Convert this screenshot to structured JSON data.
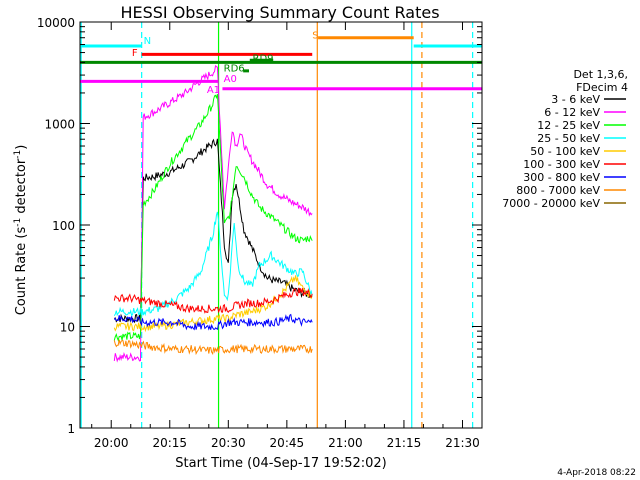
{
  "chart_data": {
    "type": "line",
    "title": "HESSI Observing Summary Count Rates",
    "xlabel": "Start Time (04-Sep-17 19:52:02)",
    "ylabel": "Count Rate (s⁻¹ detector⁻¹)",
    "ylabel_main": "Count Rate (s",
    "ylabel_sup1": "-1",
    "ylabel_mid": " detector",
    "ylabel_sup2": "-1",
    "ylabel_end": ")",
    "y_scale": "log",
    "ylim": [
      1,
      10000
    ],
    "x_start_min": 1192,
    "x_end_min": 1295,
    "x_ticks": [
      {
        "min": 1200,
        "label": "20:00"
      },
      {
        "min": 1215,
        "label": "20:15"
      },
      {
        "min": 1230,
        "label": "20:30"
      },
      {
        "min": 1245,
        "label": "20:45"
      },
      {
        "min": 1260,
        "label": "21:00"
      },
      {
        "min": 1275,
        "label": "21:15"
      },
      {
        "min": 1290,
        "label": "21:30"
      }
    ],
    "y_ticks": [
      {
        "v": 1,
        "label": "1"
      },
      {
        "v": 10,
        "label": "10"
      },
      {
        "v": 100,
        "label": "100"
      },
      {
        "v": 1000,
        "label": "1000"
      },
      {
        "v": 10000,
        "label": "10000"
      }
    ],
    "legend": {
      "header1": "Det 1,3,6,",
      "header2": "FDecim 4",
      "placement": "right"
    },
    "series": [
      {
        "name": "3 - 6 keV",
        "color": "#000000",
        "x": [
          1200.8,
          1205,
          1207.5,
          1208.2,
          1211,
          1215,
          1220,
          1224,
          1227.2,
          1229,
          1230,
          1231,
          1232,
          1234,
          1236,
          1238,
          1240,
          1242,
          1244,
          1246,
          1248,
          1250,
          1251.5
        ],
        "y": [
          12,
          12,
          12,
          290,
          300,
          330,
          420,
          560,
          680,
          65,
          40,
          200,
          260,
          90,
          60,
          40,
          30,
          28,
          27,
          24,
          22,
          21,
          20
        ]
      },
      {
        "name": "6 - 12 keV",
        "color": "#ff00ff",
        "x": [
          1200.8,
          1205,
          1207.5,
          1208.2,
          1211,
          1215,
          1219,
          1222,
          1225,
          1227.2,
          1229,
          1231,
          1232,
          1233,
          1235,
          1237,
          1240,
          1243,
          1246,
          1249,
          1251.5
        ],
        "y": [
          5,
          5,
          5,
          1150,
          1300,
          1600,
          2000,
          2500,
          3000,
          3500,
          150,
          900,
          600,
          800,
          500,
          380,
          250,
          200,
          170,
          150,
          130
        ]
      },
      {
        "name": "12 - 25 keV",
        "color": "#00ff00",
        "x": [
          1200.8,
          1205,
          1207.5,
          1208.2,
          1211,
          1215,
          1219,
          1223,
          1226,
          1227.2,
          1229,
          1230.5,
          1232,
          1234,
          1236,
          1238,
          1241,
          1244,
          1247,
          1249,
          1250.5,
          1251.5
        ],
        "y": [
          8,
          8,
          8,
          160,
          220,
          400,
          640,
          1000,
          1550,
          2000,
          100,
          130,
          400,
          300,
          200,
          150,
          120,
          95,
          75,
          70,
          75,
          70
        ]
      },
      {
        "name": "25 - 50 keV",
        "color": "#00ffff",
        "x": [
          1200.8,
          1205,
          1207.5,
          1208.2,
          1212,
          1216,
          1220,
          1223,
          1226,
          1227.2,
          1229,
          1230,
          1231.5,
          1232.5,
          1234,
          1236,
          1238,
          1241,
          1244,
          1247,
          1249,
          1251.5
        ],
        "y": [
          14,
          14,
          14,
          14,
          15,
          18,
          24,
          35,
          80,
          140,
          20,
          20,
          110,
          40,
          28,
          25,
          40,
          50,
          40,
          33,
          35,
          20
        ]
      },
      {
        "name": "50 - 100 keV",
        "color": "#ffcc00",
        "x": [
          1200.8,
          1207.5,
          1212,
          1220,
          1227.2,
          1230,
          1232,
          1236,
          1240,
          1244,
          1247,
          1249,
          1251.5
        ],
        "y": [
          10,
          10,
          10,
          11,
          12,
          12,
          13,
          14,
          16,
          22,
          30,
          24,
          20
        ]
      },
      {
        "name": "100 - 300 keV",
        "color": "#ff0000",
        "x": [
          1200.8,
          1205,
          1208,
          1212,
          1216,
          1220,
          1224,
          1227,
          1230,
          1232,
          1235,
          1238,
          1241,
          1244,
          1247,
          1249,
          1251.5
        ],
        "y": [
          19,
          19,
          18,
          17,
          16,
          15,
          15,
          15,
          15,
          16,
          17,
          17,
          18,
          20,
          22,
          22,
          21
        ]
      },
      {
        "name": "300 - 800 keV",
        "color": "#0000ff",
        "x": [
          1200.8,
          1205,
          1208,
          1212,
          1216,
          1220,
          1224,
          1227,
          1230,
          1234,
          1238,
          1242,
          1246,
          1249,
          1251.5
        ],
        "y": [
          12,
          12,
          11,
          11,
          11,
          10,
          10,
          10,
          11,
          11,
          11,
          11,
          12,
          11,
          11
        ]
      },
      {
        "name": "800 - 7000 keV",
        "color": "#ff8800",
        "x": [
          1200.8,
          1205,
          1208,
          1212,
          1216,
          1220,
          1224,
          1227,
          1230,
          1234,
          1238,
          1242,
          1246,
          1249,
          1251.5
        ],
        "y": [
          7,
          6.8,
          6.5,
          6.2,
          6,
          6,
          5.8,
          5.8,
          6,
          6,
          6,
          6,
          6,
          6,
          6
        ]
      },
      {
        "name": "7000 - 20000 keV",
        "color": "#886600",
        "x": [],
        "y": []
      }
    ],
    "segments": [
      {
        "label": "N",
        "color": "#00ffff",
        "x1": 1192,
        "x2": 1207.8,
        "y": 5800
      },
      {
        "label": "",
        "color": "#00ffff",
        "x1": 1277.5,
        "x2": 1295,
        "y": 5800
      },
      {
        "label": "F",
        "color": "#ff0000",
        "x1": 1207.8,
        "x2": 1251.5,
        "y": 4800
      },
      {
        "label": "",
        "color": "#008800",
        "x1": 1192,
        "x2": 1295,
        "y": 4000
      },
      {
        "label": "S",
        "color": "#ff8800",
        "x1": 1253,
        "x2": 1277.5,
        "y": 7000
      },
      {
        "label": "A0",
        "color": "#ff00ff",
        "x1": 1192,
        "x2": 1227.5,
        "y": 2600
      },
      {
        "label": "",
        "color": "#ff00ff",
        "x1": 1228.5,
        "x2": 1295,
        "y": 2200
      },
      {
        "label": "RD9",
        "color": "#008800",
        "x1": 1235.5,
        "x2": 1241.5,
        "y": 4200
      },
      {
        "label": "RD6",
        "color": "#008800",
        "x1": 1233.8,
        "x2": 1235.3,
        "y": 3300
      }
    ],
    "labels": [
      {
        "text": "N",
        "x": 1208.3,
        "y": 6100,
        "color": "#00ffff"
      },
      {
        "text": "F",
        "x": 1205.3,
        "y": 4600,
        "color": "#ff0000"
      },
      {
        "text": "S",
        "x": 1251.5,
        "y": 6900,
        "color": "#ff8800"
      },
      {
        "text": "A1",
        "x": 1224.5,
        "y": 2000,
        "color": "#ff00ff"
      },
      {
        "text": "A0",
        "x": 1228.8,
        "y": 2550,
        "color": "#ff00ff"
      },
      {
        "text": "RD6",
        "x": 1228.8,
        "y": 3250,
        "color": "#008800"
      },
      {
        "text": "RD9",
        "x": 1236.2,
        "y": 4100,
        "color": "#008800"
      }
    ],
    "vlines": [
      {
        "x": 1192.3,
        "color": "#00ffff",
        "dash": false
      },
      {
        "x": 1207.8,
        "color": "#00ffff",
        "dash": true
      },
      {
        "x": 1227.5,
        "color": "#00ff00",
        "dash": false
      },
      {
        "x": 1252.8,
        "color": "#ff8800",
        "dash": false
      },
      {
        "x": 1277.0,
        "color": "#00ffff",
        "dash": false
      },
      {
        "x": 1279.6,
        "color": "#ff8800",
        "dash": true
      },
      {
        "x": 1292.6,
        "color": "#00ffff",
        "dash": true
      }
    ]
  },
  "footer": {
    "stamp": "4-Apr-2018 08:22"
  }
}
